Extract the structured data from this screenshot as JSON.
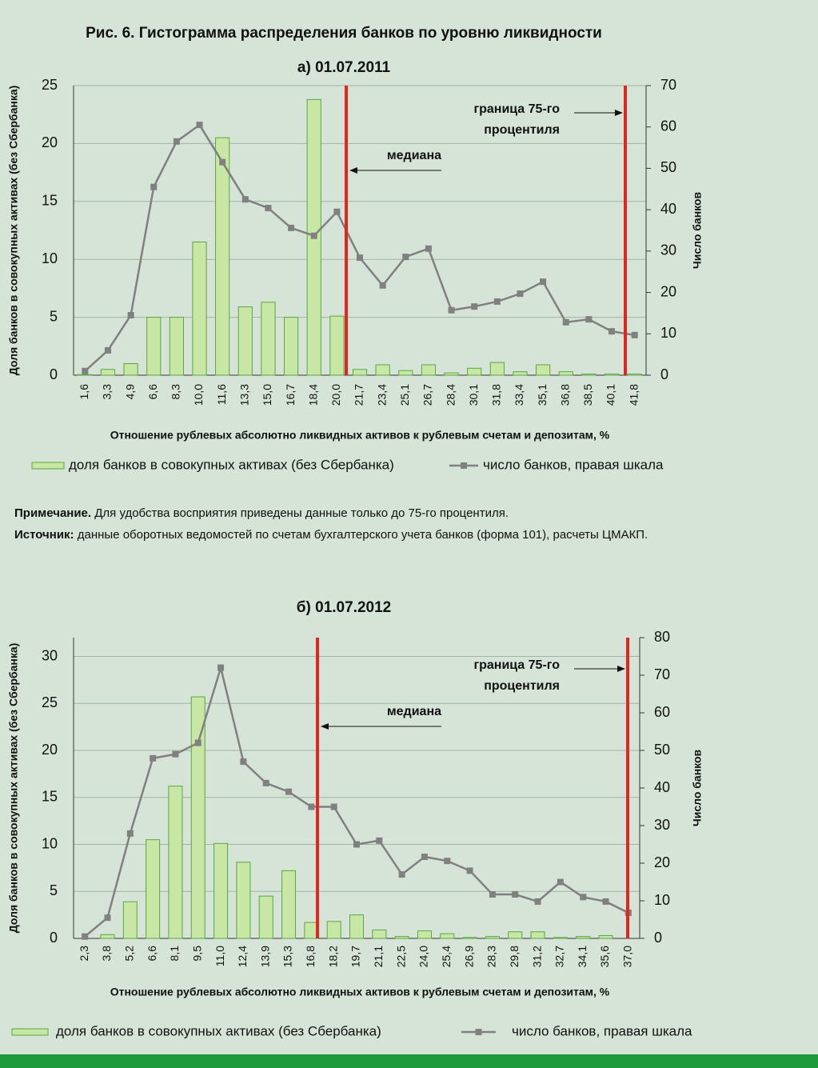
{
  "title": "Рис. 6. Гистограмма распределения банков по уровню ликвидности",
  "note": {
    "label": "Примечание.",
    "text": "Для удобства восприятия приведены данные только до 75-го процентиля."
  },
  "source": {
    "label": "Источник:",
    "text": "данные оборотных ведомостей по счетам бухгалтерского учета банков (форма 101), расчеты ЦМАКП."
  },
  "chart_data": [
    {
      "type": "bar_line",
      "title": "а) 01.07.2011",
      "x_label": "Отношение рублевых абсолютно ликвидных активов к рублевым счетам и депозитам, %",
      "y_label": "Доля банков в совокупных активах (без Сбербанка)",
      "y2_label": "Число банков",
      "annotations": {
        "median": "медиана",
        "percentile_75": [
          "граница 75-го",
          "процентиля"
        ]
      },
      "categories": [
        "1,6",
        "3,3",
        "4,9",
        "6,6",
        "8,3",
        "10,0",
        "11,6",
        "13,3",
        "15,0",
        "16,7",
        "18,4",
        "20,0",
        "21,7",
        "23,4",
        "25,1",
        "26,7",
        "28,4",
        "30,1",
        "31,8",
        "33,4",
        "35,1",
        "36,8",
        "38,5",
        "40,1",
        "41,8"
      ],
      "series": [
        {
          "name": "доля банков в совокупных активах (без Сбербанка)",
          "color": "#c8e6a4",
          "stroke": "#5aa646",
          "values": [
            0.05,
            0.5,
            1.0,
            5.0,
            5.0,
            11.5,
            20.5,
            5.9,
            6.3,
            5.0,
            23.8,
            5.1,
            0.5,
            0.9,
            0.4,
            0.9,
            0.2,
            0.6,
            1.1,
            0.3,
            0.9,
            0.3,
            0.1,
            0.1,
            0.1
          ]
        },
        {
          "name": "число банков, правая шкала",
          "color": "#808080",
          "axis": "y2",
          "values": [
            1,
            6,
            14.5,
            45.5,
            56.5,
            60.5,
            51.5,
            42.5,
            40.4,
            35.6,
            33.7,
            39.5,
            28.4,
            21.7,
            28.6,
            30.6,
            15.7,
            16.6,
            17.8,
            19.7,
            22.6,
            12.8,
            13.5,
            10.6,
            9.7
          ]
        }
      ],
      "ylim": [
        0,
        25
      ],
      "yticks": [
        0,
        5,
        10,
        15,
        20,
        25
      ],
      "y2lim": [
        0,
        70
      ],
      "y2ticks": [
        0,
        10,
        20,
        30,
        40,
        50,
        60,
        70
      ],
      "grid": true
    },
    {
      "type": "bar_line",
      "title": "б) 01.07.2012",
      "x_label": "Отношение рублевых абсолютно ликвидных активов к рублевым счетам и депозитам, %",
      "y_label": "Доля банков в совокупных активах (без Сбербанка)",
      "y2_label": "Число банков",
      "annotations": {
        "median": "медиана",
        "percentile_75": [
          "граница 75-го",
          "процентиля"
        ]
      },
      "categories": [
        "2,3",
        "3,8",
        "5,2",
        "6,6",
        "8,1",
        "9,5",
        "11,0",
        "12,4",
        "13,9",
        "15,3",
        "16,8",
        "18,2",
        "19,7",
        "21,1",
        "22,5",
        "24,0",
        "25,4",
        "26,9",
        "28,3",
        "29,8",
        "31,2",
        "32,7",
        "34,1",
        "35,6",
        "37,0"
      ],
      "series": [
        {
          "name": "доля банков в совокупных активах (без Сбербанка)",
          "color": "#c8e6a4",
          "stroke": "#5aa646",
          "values": [
            0,
            0.4,
            3.9,
            10.5,
            16.2,
            25.7,
            10.1,
            8.1,
            4.5,
            7.2,
            1.7,
            1.8,
            2.5,
            0.9,
            0.2,
            0.8,
            0.5,
            0.1,
            0.2,
            0.7,
            0.7,
            0.1,
            0.2,
            0.3,
            0
          ]
        },
        {
          "name": "число банков, правая шкала",
          "color": "#808080",
          "axis": "y2",
          "values": [
            0.5,
            5.5,
            27.9,
            47.9,
            49,
            52,
            72,
            47,
            41.3,
            39,
            35,
            35,
            25,
            26,
            17,
            21.7,
            20.6,
            18,
            11.7,
            11.7,
            9.8,
            15,
            11,
            9.8,
            6.8
          ]
        }
      ],
      "ylim": [
        0,
        32
      ],
      "yticks": [
        0,
        5,
        10,
        15,
        20,
        25,
        30
      ],
      "y2lim": [
        0,
        80
      ],
      "y2ticks": [
        0,
        10,
        20,
        30,
        40,
        50,
        60,
        70,
        80
      ],
      "grid": true
    }
  ]
}
